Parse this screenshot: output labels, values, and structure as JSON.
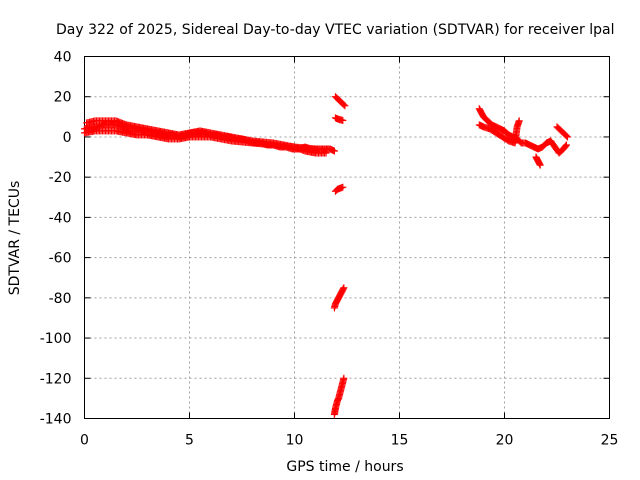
{
  "chart_data": {
    "type": "scatter",
    "title": "Day 322 of 2025, Sidereal Day-to-day VTEC variation (SDTVAR) for receiver lpal",
    "xlabel": "GPS time / hours",
    "ylabel": "SDTVAR / TECUs",
    "xlim": [
      0,
      25
    ],
    "ylim": [
      -140,
      40
    ],
    "x_ticks": [
      0,
      5,
      10,
      15,
      20,
      25
    ],
    "y_ticks": [
      40,
      20,
      0,
      -20,
      -40,
      -60,
      -80,
      -100,
      -120,
      -140
    ],
    "grid": true,
    "marker": "plus",
    "color": "#ff0000",
    "series": [
      {
        "name": "SDTVAR",
        "segments": [
          {
            "x": [
              0.0,
              0.3,
              0.6,
              0.9,
              1.2,
              1.5,
              1.8,
              2.1,
              2.4,
              2.7,
              3.0,
              3.3,
              3.6,
              3.9,
              4.2,
              4.5,
              4.8,
              5.1,
              5.4,
              5.7,
              6.0,
              6.3,
              6.6,
              6.9,
              7.2,
              7.5,
              7.8,
              8.1,
              8.4,
              8.7,
              9.0,
              9.3,
              9.6,
              9.9,
              10.2,
              10.5,
              10.8,
              11.1,
              11.4,
              11.7,
              11.9
            ],
            "y": [
              4,
              5,
              5,
              6,
              6,
              6,
              5,
              4,
              4,
              3,
              3,
              2,
              2,
              1,
              1,
              0,
              1,
              2,
              2,
              2,
              1,
              1,
              0,
              0,
              -1,
              -1,
              -2,
              -3,
              -3,
              -4,
              -4,
              -5,
              -5,
              -6,
              -6,
              -5,
              -6,
              -6,
              -6,
              -6,
              -7
            ]
          },
          {
            "x": [
              0.1,
              0.5,
              1.0,
              1.5,
              2.0,
              2.5,
              3.0,
              3.5,
              4.0,
              4.5,
              5.0,
              5.5,
              6.0,
              7.0,
              8.0,
              9.0,
              10.0,
              10.5,
              11.0,
              11.5
            ],
            "y": [
              7,
              8,
              8,
              8,
              6,
              5,
              4,
              3,
              2,
              1,
              2,
              3,
              2,
              0,
              -2,
              -3,
              -5,
              -7,
              -8,
              -8
            ]
          },
          {
            "x": [
              0.0,
              0.5,
              1.0,
              1.5,
              2.0,
              2.5,
              3.0,
              3.5,
              4.0,
              4.5,
              5.0,
              6.0,
              7.0,
              8.0,
              9.0,
              10.0,
              11.0
            ],
            "y": [
              2,
              3,
              3,
              3,
              2,
              1,
              1,
              0,
              -1,
              -1,
              0,
              0,
              -2,
              -3,
              -4,
              -5,
              -6
            ]
          },
          {
            "x": [
              11.95,
              12.0,
              12.05,
              12.1,
              12.15,
              12.2,
              12.25,
              12.3,
              12.35,
              12.4
            ],
            "y": [
              20,
              19.5,
              19,
              18.5,
              18,
              17.5,
              17,
              16.5,
              16,
              15.5
            ]
          },
          {
            "x": [
              11.95,
              12.0,
              12.05,
              12.1,
              12.15,
              12.2,
              12.25,
              12.3
            ],
            "y": [
              9.5,
              9.2,
              9,
              8.8,
              8.6,
              8.5,
              8.4,
              8.2
            ]
          },
          {
            "x": [
              11.95,
              12.0,
              12.05,
              12.1,
              12.15,
              12.2,
              12.25,
              12.3
            ],
            "y": [
              -27,
              -26.5,
              -26,
              -25.8,
              -25.6,
              -25.4,
              -25.2,
              -25
            ]
          },
          {
            "x": [
              11.9,
              11.95,
              12.0,
              12.05,
              12.1,
              12.15,
              12.2,
              12.25,
              12.3,
              12.35
            ],
            "y": [
              -85,
              -83,
              -82,
              -81,
              -80,
              -79,
              -78,
              -77,
              -76,
              -75
            ]
          },
          {
            "x": [
              11.9,
              11.95,
              12.0,
              12.05,
              12.1,
              12.15,
              12.2,
              12.25,
              12.3,
              12.35
            ],
            "y": [
              -138,
              -135,
              -133,
              -131,
              -130,
              -128,
              -126,
              -124,
              -122,
              -120
            ]
          },
          {
            "x": [
              18.8,
              19.0,
              19.2,
              19.4,
              19.6,
              19.8,
              20.0,
              20.2,
              20.4,
              20.6,
              20.8,
              21.0,
              21.2,
              21.4,
              21.6,
              21.8,
              22.0,
              22.2,
              22.4,
              22.6,
              22.8,
              22.95
            ],
            "y": [
              14,
              10,
              8,
              6,
              5,
              4,
              3,
              1,
              0,
              -1,
              -3,
              -3,
              -4,
              -5,
              -6,
              -5,
              -3,
              -2,
              -5,
              -8,
              -6,
              -4
            ]
          },
          {
            "x": [
              18.8,
              19.0,
              19.3,
              19.6,
              19.9,
              20.2,
              20.5,
              20.6,
              20.7
            ],
            "y": [
              6,
              5,
              4,
              2,
              0,
              -2,
              -3,
              5,
              8
            ]
          },
          {
            "x": [
              21.5,
              21.55,
              21.6,
              21.65,
              21.7
            ],
            "y": [
              -10,
              -11,
              -12,
              -13,
              -14
            ]
          },
          {
            "x": [
              22.5,
              22.6,
              22.7,
              22.8,
              22.9,
              23.0
            ],
            "y": [
              5,
              4,
              3,
              2,
              1,
              0
            ]
          }
        ]
      }
    ]
  }
}
